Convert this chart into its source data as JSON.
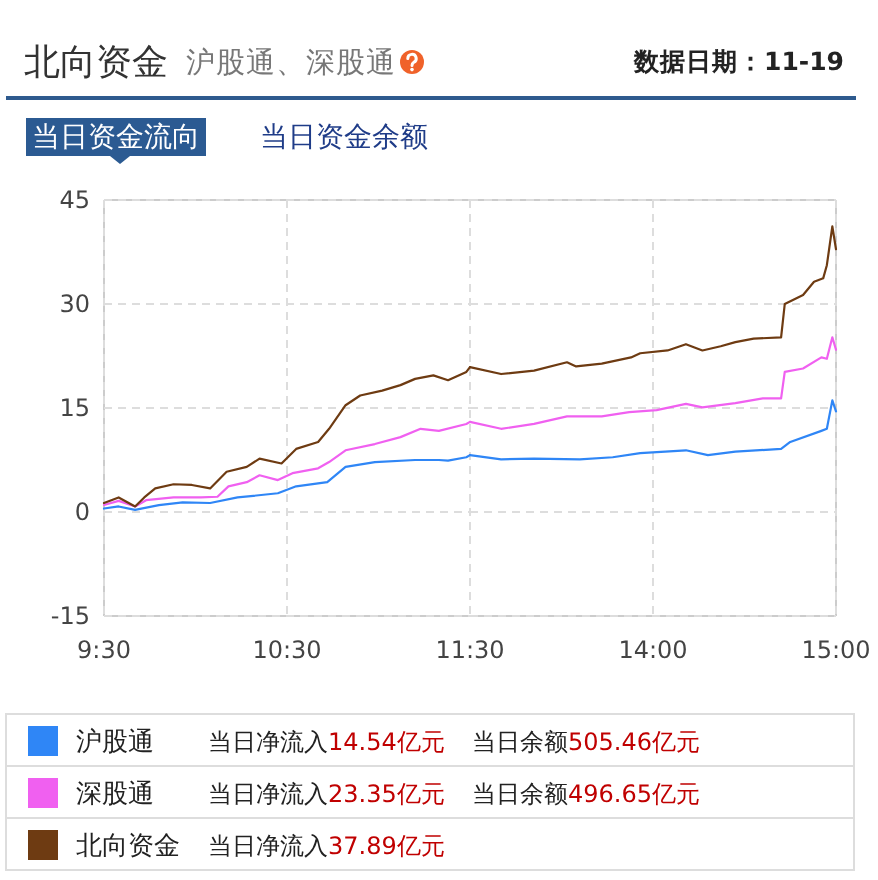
{
  "chart_data": [
    {
      "type": "line",
      "title": "北向资金",
      "subtitle": "沪股通、深股通",
      "annotations": [
        "数据日期：11-19",
        "当日资金流向",
        "当日资金余额",
        "当日净流入14.54亿元",
        "当日余额505.46亿元",
        "当日净流入23.35亿元",
        "当日余额496.65亿元",
        "当日净流入37.89亿元"
      ],
      "series": [
        {
          "name": "沪股通",
          "color": "#2f86f6",
          "x": [
            9.5,
            9.58,
            9.67,
            9.8,
            9.93,
            10.08,
            10.23,
            10.45,
            10.55,
            10.72,
            10.82,
            10.98,
            11.2,
            11.33,
            11.38,
            11.48,
            11.5
          ],
          "values": [
            0.5,
            0.8,
            0.3,
            1.0,
            1.4,
            1.3,
            2.1,
            2.7,
            3.7,
            4.3,
            6.5,
            7.2,
            7.5,
            7.5,
            7.4,
            7.9,
            8.2
          ]
        },
        {
          "name": "深股通",
          "color": "#f060f0",
          "x": [
            9.5,
            9.58,
            9.67,
            9.73,
            9.88,
            10.03,
            10.12,
            10.18,
            10.28,
            10.35,
            10.45,
            10.53,
            10.67,
            10.73,
            10.82,
            10.98,
            11.12,
            11.23,
            11.33,
            11.48,
            11.5
          ],
          "values": [
            1.0,
            1.6,
            0.8,
            1.7,
            2.1,
            2.1,
            2.2,
            3.7,
            4.3,
            5.3,
            4.6,
            5.6,
            6.3,
            7.2,
            8.9,
            9.8,
            10.8,
            12.0,
            11.7,
            12.7,
            13.0
          ]
        },
        {
          "name": "北向资金",
          "color": "#6e3b12",
          "x": [
            9.5,
            9.58,
            9.67,
            9.72,
            9.78,
            9.88,
            9.98,
            10.08,
            10.17,
            10.28,
            10.35,
            10.47,
            10.55,
            10.67,
            10.73,
            10.82,
            10.9,
            11.02,
            11.12,
            11.2,
            11.3,
            11.38,
            11.48,
            11.5
          ],
          "values": [
            1.3,
            2.1,
            0.8,
            2.1,
            3.4,
            4.0,
            3.9,
            3.4,
            5.8,
            6.5,
            7.7,
            7.0,
            9.1,
            10.1,
            12.0,
            15.4,
            16.8,
            17.5,
            18.3,
            19.2,
            19.7,
            19.0,
            20.2,
            20.9
          ]
        }
      ],
      "xlim": [
        9.5,
        11.5
      ],
      "xticks": [
        {
          "value": 9.5,
          "label": "9:30"
        },
        {
          "value": 10.5,
          "label": "10:30"
        },
        {
          "value": 11.5,
          "label": "11:30"
        }
      ],
      "ylim": [
        -15,
        45
      ],
      "yticks": [
        -15,
        0,
        15,
        30,
        45
      ],
      "grid": true,
      "legend": "bottom"
    },
    {
      "type": "line",
      "series": [
        {
          "color": "#2f86f6",
          "x": [
            13,
            13.17,
            13.35,
            13.6,
            13.78,
            13.93,
            14.18,
            14.3,
            14.45,
            14.7,
            14.75,
            14.92,
            14.95,
            14.98,
            15
          ],
          "values": [
            8.2,
            7.6,
            7.7,
            7.6,
            7.9,
            8.5,
            8.9,
            8.2,
            8.7,
            9.1,
            10.1,
            11.7,
            12.0,
            16.1,
            14.5
          ]
        },
        {
          "color": "#f060f0",
          "x": [
            13,
            13.17,
            13.35,
            13.53,
            13.72,
            13.87,
            14.02,
            14.18,
            14.27,
            14.45,
            14.6,
            14.7,
            14.72,
            14.82,
            14.92,
            14.95,
            14.98,
            15
          ],
          "values": [
            13.0,
            12.0,
            12.7,
            13.8,
            13.8,
            14.4,
            14.7,
            15.6,
            15.1,
            15.7,
            16.4,
            16.4,
            20.2,
            20.7,
            22.3,
            22.1,
            25.2,
            23.4
          ]
        },
        {
          "color": "#6e3b12",
          "x": [
            13,
            13.17,
            13.35,
            13.53,
            13.58,
            13.72,
            13.88,
            13.93,
            14.08,
            14.18,
            14.27,
            14.37,
            14.45,
            14.55,
            14.7,
            14.72,
            14.82,
            14.88,
            14.93,
            14.95,
            14.98,
            15
          ],
          "values": [
            20.9,
            19.9,
            20.4,
            21.6,
            21.0,
            21.4,
            22.3,
            22.9,
            23.3,
            24.2,
            23.3,
            23.9,
            24.5,
            25.0,
            25.2,
            30.0,
            31.3,
            33.2,
            33.7,
            35.6,
            41.2,
            37.9
          ]
        }
      ],
      "xlim": [
        13,
        15
      ],
      "xticks": [
        {
          "value": 14,
          "label": "14:00"
        },
        {
          "value": 15,
          "label": "15:00"
        }
      ],
      "ylim": [
        -15,
        45
      ],
      "yticks": [
        -15,
        0,
        15,
        30,
        45
      ],
      "grid": true,
      "tick_labels": "x"
    }
  ]
}
